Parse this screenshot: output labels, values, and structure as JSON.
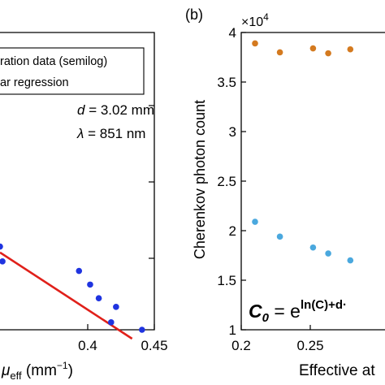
{
  "chart_data": [
    {
      "type": "scatter",
      "panel_label": "",
      "legend": [
        "Calibration data (semilog)",
        "Linear regression"
      ],
      "legend_visible": [
        "ration data (semilog)",
        "ar regression"
      ],
      "annotations": {
        "d_var": "d",
        "d_value": " = 3.02 mm",
        "lambda_var": "λ",
        "lambda_value": " = 851 nm"
      },
      "xlabel_var": "μ",
      "xlabel_sub": "eff",
      "xlabel_unit_open": " (mm",
      "xlabel_unit_exp": "−1",
      "xlabel_unit_close": ")",
      "x_ticks": [
        "0.4",
        "0.45"
      ],
      "xlim": [
        0.325,
        0.45
      ],
      "ylim": [
        0,
        1
      ],
      "series": [
        {
          "role": "data",
          "color": "#1f34e0",
          "points": [
            {
              "x": 0.325,
              "y": 0.28
            },
            {
              "x": 0.327,
              "y": 0.23
            },
            {
              "x": 0.389,
              "y": 0.198
            },
            {
              "x": 0.398,
              "y": 0.152
            },
            {
              "x": 0.405,
              "y": 0.106
            },
            {
              "x": 0.419,
              "y": 0.077
            },
            {
              "x": 0.415,
              "y": 0.025
            },
            {
              "x": 0.44,
              "y": 0.0
            }
          ]
        },
        {
          "role": "regression",
          "color": "#e0201a",
          "points": [
            {
              "x": 0.325,
              "y": 0.26
            },
            {
              "x": 0.432,
              "y": -0.03
            }
          ]
        }
      ]
    },
    {
      "type": "scatter",
      "panel_label": "(b)",
      "scale_base": "×10",
      "scale_exp": "4",
      "ylabel": "Cherenkov photon count",
      "xlabel_visible": "Effective at",
      "formula": {
        "c": "C",
        "sub": "0",
        "eq": " = e",
        "exp": "ln(C)+d·"
      },
      "x_ticks": [
        "0.2",
        "0.25"
      ],
      "y_ticks": [
        "1",
        "1.5",
        "2",
        "2.5",
        "3",
        "3.5",
        "4"
      ],
      "xlim": [
        0.2,
        0.29
      ],
      "ylim": [
        1,
        4
      ],
      "y_scale_factor": 10000,
      "series": [
        {
          "color": "#d47a1f",
          "points": [
            {
              "x": 0.21,
              "y": 3.89
            },
            {
              "x": 0.228,
              "y": 3.8
            },
            {
              "x": 0.252,
              "y": 3.84
            },
            {
              "x": 0.263,
              "y": 3.79
            },
            {
              "x": 0.279,
              "y": 3.83
            }
          ]
        },
        {
          "color": "#4aa8de",
          "points": [
            {
              "x": 0.21,
              "y": 2.09
            },
            {
              "x": 0.228,
              "y": 1.94
            },
            {
              "x": 0.252,
              "y": 1.83
            },
            {
              "x": 0.263,
              "y": 1.77
            },
            {
              "x": 0.279,
              "y": 1.7
            }
          ]
        }
      ]
    }
  ]
}
